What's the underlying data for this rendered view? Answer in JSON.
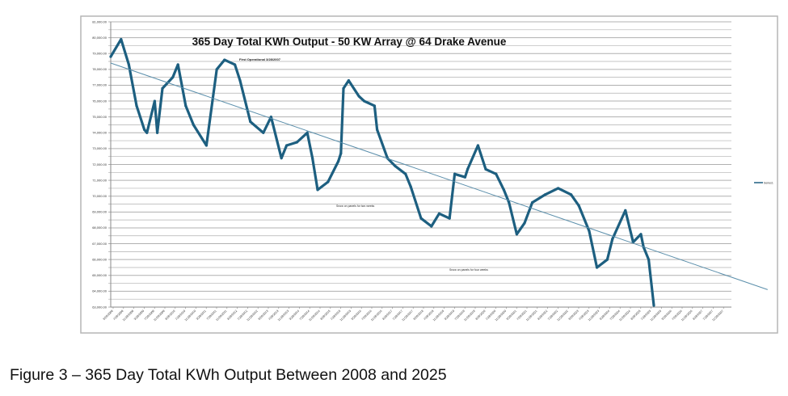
{
  "caption": "Figure 3 – 365 Day Total KWh Output Between 2008 and 2025",
  "chart_data": {
    "type": "line",
    "title": "365 Day Total KWh Output  - 50 KW Array @ 64 Drake Avenue",
    "subtitle": "First Operational 3/28/2007",
    "xlabel": "",
    "ylabel": "",
    "ylim": [
      63000,
      81000
    ],
    "xlim": [
      "2008-03",
      "2028-03"
    ],
    "grid": true,
    "legend": "right",
    "colors": {
      "series": "#1d5f80",
      "trend": "#5b8fab",
      "grid": "#b0b0b0"
    },
    "y_ticks": [
      "81,000.00",
      "80,000.00",
      "79,000.00",
      "78,000.00",
      "77,000.00",
      "76,000.00",
      "75,000.00",
      "74,000.00",
      "73,000.00",
      "72,000.00",
      "71,000.00",
      "70,000.00",
      "69,000.00",
      "68,000.00",
      "67,000.00",
      "66,000.00",
      "65,000.00",
      "64,000.00",
      "63,000.00"
    ],
    "x_ticks": [
      "3/28/2008",
      "7/28/2008",
      "11/28/2008",
      "3/28/2009",
      "7/28/2009",
      "11/28/2009",
      "3/28/2010",
      "7/28/2010",
      "11/28/2010",
      "3/28/2011",
      "7/28/2011",
      "11/28/2011",
      "3/28/2012",
      "7/28/2012",
      "11/28/2012",
      "3/28/2013",
      "7/28/2013",
      "11/28/2013",
      "3/28/2014",
      "7/28/2014",
      "11/28/2014",
      "3/28/2015",
      "7/28/2015",
      "11/28/2015",
      "3/28/2016",
      "7/28/2016",
      "11/28/2016",
      "3/28/2017",
      "7/28/2017",
      "11/28/2017",
      "3/28/2018",
      "7/28/2018",
      "11/28/2018",
      "3/28/2019",
      "7/28/2019",
      "11/28/2019",
      "3/28/2020",
      "7/28/2020",
      "11/28/2020",
      "3/28/2021",
      "7/28/2021",
      "11/28/2021",
      "3/28/2022",
      "7/28/2022",
      "11/28/2022",
      "3/28/2023",
      "7/28/2023",
      "11/28/2023",
      "3/28/2024",
      "7/28/2024",
      "11/28/2024",
      "3/28/2025",
      "7/28/2025",
      "11/28/2025",
      "3/28/2026",
      "7/28/2026",
      "11/28/2026",
      "3/28/2027",
      "7/28/2027",
      "11/28/2027"
    ],
    "legend_label": "Series1",
    "annotations": [
      {
        "text": "Snow on panels for two weeks",
        "x": "2015-06",
        "y": 68900
      },
      {
        "text": "Snow on panels for four weeks",
        "x": "2020-03",
        "y": 65900
      }
    ],
    "series": [
      {
        "x": [
          "2008-03",
          "2008-07",
          "2008-10",
          "2009-01",
          "2009-04",
          "2009-05",
          "2009-08",
          "2009-09",
          "2009-11",
          "2010-03",
          "2010-05",
          "2010-08",
          "2010-11",
          "2011-04",
          "2011-08",
          "2011-11",
          "2012-03",
          "2012-05",
          "2012-09",
          "2013-02",
          "2013-05",
          "2013-09",
          "2013-11",
          "2014-03",
          "2014-07",
          "2014-09",
          "2014-11",
          "2015-03",
          "2015-07",
          "2015-08",
          "2015-09",
          "2015-11",
          "2016-03",
          "2016-05",
          "2016-09",
          "2016-10",
          "2017-02",
          "2017-05",
          "2017-09",
          "2017-11",
          "2018-03",
          "2018-07",
          "2018-10",
          "2019-02",
          "2019-04",
          "2019-08",
          "2019-09",
          "2020-01",
          "2020-04",
          "2020-08",
          "2020-11",
          "2021-01",
          "2021-04",
          "2021-07",
          "2021-10",
          "2022-03",
          "2022-08",
          "2023-01",
          "2023-04",
          "2023-08",
          "2023-11",
          "2024-03",
          "2024-05",
          "2024-10",
          "2025-01",
          "2025-04",
          "2025-05",
          "2025-07",
          "2025-09"
        ],
        "values": [
          78800,
          79900,
          78300,
          75700,
          74200,
          74000,
          76000,
          74000,
          76800,
          77500,
          78300,
          75700,
          74500,
          73200,
          78000,
          78600,
          78300,
          77300,
          74700,
          74000,
          75000,
          72400,
          73200,
          73400,
          74000,
          72400,
          70400,
          70900,
          72200,
          72700,
          76800,
          77300,
          76300,
          76000,
          75700,
          74200,
          72400,
          71900,
          71400,
          70600,
          68600,
          68100,
          68900,
          68600,
          71400,
          71200,
          71700,
          73200,
          71700,
          71400,
          70400,
          69600,
          67600,
          68300,
          69600,
          70100,
          70500,
          70100,
          69400,
          67800,
          65500,
          66000,
          67300,
          69100,
          67100,
          67600,
          66800,
          66000,
          63100
        ]
      },
      {
        "name": "",
        "kind": "trendline",
        "x": [
          "2008-03",
          "2029-05"
        ],
        "values": [
          78400,
          64100
        ]
      }
    ]
  }
}
